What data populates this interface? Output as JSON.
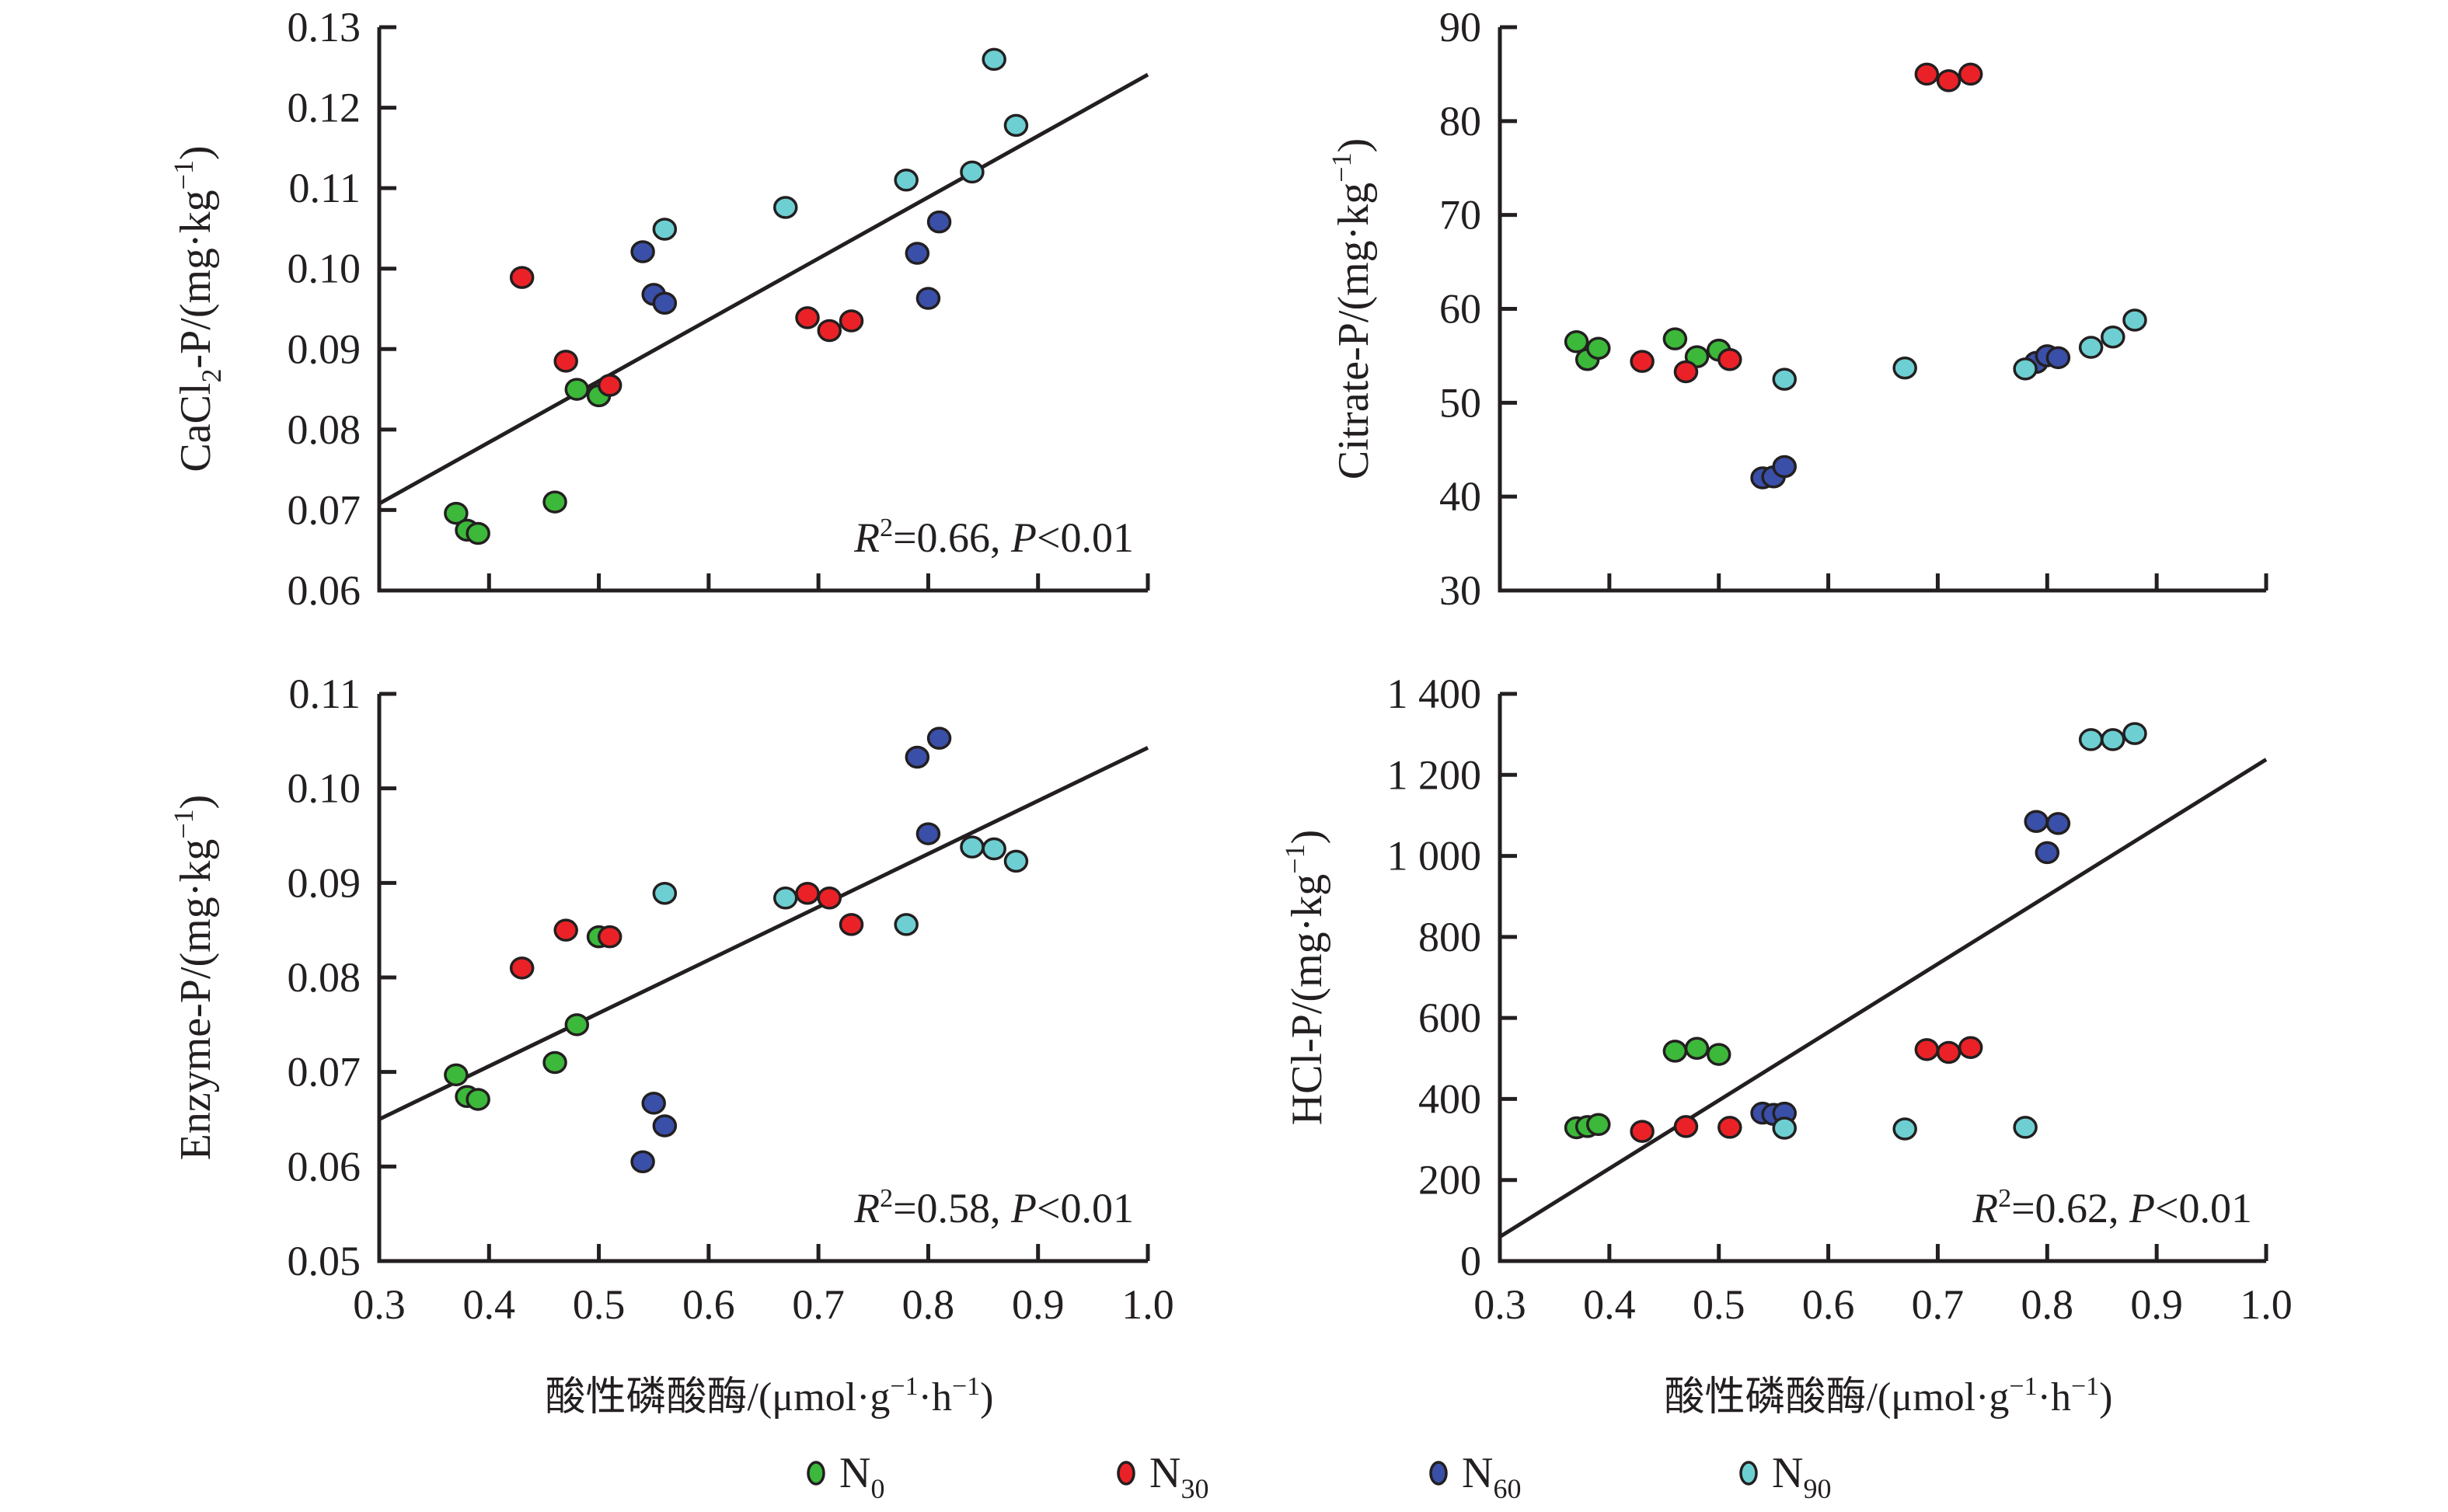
{
  "chart_data": [
    {
      "type": "scatter",
      "id": "cacl2",
      "title": "",
      "ylabel_main": "CaCl",
      "ylabel_sub": "2",
      "ylabel_rest": "-P/(mg·kg",
      "ylabel_sup": "−1",
      "ylabel_close": ")",
      "xlabel": "",
      "xlim": [
        0.3,
        1.0
      ],
      "ylim": [
        0.06,
        0.13
      ],
      "xticks": [
        0.3,
        0.4,
        0.5,
        0.6,
        0.7,
        0.8,
        0.9,
        1.0
      ],
      "yticks": [
        0.06,
        0.07,
        0.08,
        0.09,
        0.1,
        0.11,
        0.12,
        0.13
      ],
      "ytick_labels": [
        "0.06",
        "0.07",
        "0.08",
        "0.09",
        "0.10",
        "0.11",
        "0.12",
        "0.13"
      ],
      "show_xtick_labels": false,
      "grid": false,
      "annotation": {
        "r_label": "R",
        "r_sup": "2",
        "r_value": "=0.66, ",
        "p_label": "P",
        "p_value": "<0.01"
      },
      "regression": {
        "x": [
          0.3,
          1.0
        ],
        "y": [
          0.0708,
          0.1241
        ]
      },
      "series": [
        {
          "name": "N0",
          "x": [
            0.37,
            0.38,
            0.39,
            0.46,
            0.48,
            0.5
          ],
          "y": [
            0.0696,
            0.0675,
            0.0671,
            0.071,
            0.085,
            0.0842
          ]
        },
        {
          "name": "N30",
          "x": [
            0.43,
            0.47,
            0.51,
            0.69,
            0.71,
            0.73
          ],
          "y": [
            0.0989,
            0.0885,
            0.0855,
            0.0939,
            0.0923,
            0.0935
          ]
        },
        {
          "name": "N60",
          "x": [
            0.54,
            0.55,
            0.56,
            0.79,
            0.8,
            0.81
          ],
          "y": [
            0.1021,
            0.0968,
            0.0957,
            0.1019,
            0.0963,
            0.1058
          ]
        },
        {
          "name": "N90",
          "x": [
            0.56,
            0.67,
            0.78,
            0.84,
            0.86,
            0.88
          ],
          "y": [
            0.1049,
            0.1076,
            0.111,
            0.112,
            0.126,
            0.1178
          ]
        }
      ]
    },
    {
      "type": "scatter",
      "id": "citrate",
      "title": "",
      "ylabel_main": "Citrate-P/(mg·kg",
      "ylabel_sub": "",
      "ylabel_rest": "",
      "ylabel_sup": "−1",
      "ylabel_close": ")",
      "xlabel": "",
      "xlim": [
        0.3,
        1.0
      ],
      "ylim": [
        30,
        90
      ],
      "xticks": [
        0.3,
        0.4,
        0.5,
        0.6,
        0.7,
        0.8,
        0.9,
        1.0
      ],
      "yticks": [
        30,
        40,
        50,
        60,
        70,
        80,
        90
      ],
      "ytick_labels": [
        "30",
        "40",
        "50",
        "60",
        "70",
        "80",
        "90"
      ],
      "show_xtick_labels": false,
      "grid": false,
      "annotation": null,
      "regression": null,
      "series": [
        {
          "name": "N0",
          "x": [
            0.37,
            0.38,
            0.39,
            0.46,
            0.48,
            0.5
          ],
          "y": [
            56.5,
            54.6,
            55.8,
            56.8,
            54.9,
            55.6
          ]
        },
        {
          "name": "N30",
          "x": [
            0.43,
            0.47,
            0.51,
            0.69,
            0.71,
            0.73
          ],
          "y": [
            54.4,
            53.3,
            54.6,
            85.0,
            84.3,
            85.0
          ]
        },
        {
          "name": "N60",
          "x": [
            0.54,
            0.55,
            0.56,
            0.79,
            0.8,
            0.81
          ],
          "y": [
            42.0,
            42.1,
            43.2,
            54.3,
            55.0,
            54.8
          ]
        },
        {
          "name": "N90",
          "x": [
            0.56,
            0.67,
            0.78,
            0.84,
            0.86,
            0.88
          ],
          "y": [
            52.5,
            53.7,
            53.6,
            55.9,
            57.0,
            58.8
          ]
        }
      ]
    },
    {
      "type": "scatter",
      "id": "enzyme",
      "title": "",
      "ylabel_main": "Enzyme-P/(mg·kg",
      "ylabel_sub": "",
      "ylabel_rest": "",
      "ylabel_sup": "−1",
      "ylabel_close": ")",
      "xlabel": "酸性磷酸酶/(μmol·g⁻¹·h⁻¹)",
      "xlim": [
        0.3,
        1.0
      ],
      "ylim": [
        0.05,
        0.11
      ],
      "xticks": [
        0.3,
        0.4,
        0.5,
        0.6,
        0.7,
        0.8,
        0.9,
        1.0
      ],
      "xtick_labels": [
        "0.3",
        "0.4",
        "0.5",
        "0.6",
        "0.7",
        "0.8",
        "0.9",
        "1.0"
      ],
      "yticks": [
        0.05,
        0.06,
        0.07,
        0.08,
        0.09,
        0.1,
        0.11
      ],
      "ytick_labels": [
        "0.05",
        "0.06",
        "0.07",
        "0.08",
        "0.09",
        "0.10",
        "0.11"
      ],
      "show_xtick_labels": true,
      "grid": false,
      "annotation": {
        "r_label": "R",
        "r_sup": "2",
        "r_value": "=0.58, ",
        "p_label": "P",
        "p_value": "<0.01"
      },
      "regression": {
        "x": [
          0.3,
          1.0
        ],
        "y": [
          0.065,
          0.1043
        ]
      },
      "series": [
        {
          "name": "N0",
          "x": [
            0.37,
            0.38,
            0.39,
            0.46,
            0.48,
            0.5
          ],
          "y": [
            0.0697,
            0.0674,
            0.0671,
            0.071,
            0.075,
            0.0843
          ]
        },
        {
          "name": "N30",
          "x": [
            0.43,
            0.47,
            0.51,
            0.69,
            0.71,
            0.73
          ],
          "y": [
            0.081,
            0.085,
            0.0843,
            0.0889,
            0.0884,
            0.0856
          ]
        },
        {
          "name": "N60",
          "x": [
            0.54,
            0.55,
            0.56,
            0.79,
            0.8,
            0.81
          ],
          "y": [
            0.0605,
            0.0667,
            0.0643,
            0.1033,
            0.0952,
            0.1053
          ]
        },
        {
          "name": "N90",
          "x": [
            0.56,
            0.67,
            0.78,
            0.84,
            0.86,
            0.88
          ],
          "y": [
            0.0889,
            0.0884,
            0.0856,
            0.0938,
            0.0936,
            0.0923
          ]
        }
      ]
    },
    {
      "type": "scatter",
      "id": "hcl",
      "title": "",
      "ylabel_main": "HCl-P/(mg·kg",
      "ylabel_sub": "",
      "ylabel_rest": "",
      "ylabel_sup": "−1",
      "ylabel_close": ")",
      "xlabel": "酸性磷酸酶/(μmol·g⁻¹·h⁻¹)",
      "xlim": [
        0.3,
        1.0
      ],
      "ylim": [
        0,
        1400
      ],
      "xticks": [
        0.3,
        0.4,
        0.5,
        0.6,
        0.7,
        0.8,
        0.9,
        1.0
      ],
      "xtick_labels": [
        "0.3",
        "0.4",
        "0.5",
        "0.6",
        "0.7",
        "0.8",
        "0.9",
        "1.0"
      ],
      "yticks": [
        0,
        200,
        400,
        600,
        800,
        1000,
        1200,
        1400
      ],
      "ytick_labels": [
        "0",
        "200",
        "400",
        "600",
        "800",
        "1 000",
        "1 200",
        "1 400"
      ],
      "show_xtick_labels": true,
      "grid": false,
      "annotation": {
        "r_label": "R",
        "r_sup": "2",
        "r_value": "=0.62, ",
        "p_label": "P",
        "p_value": "<0.01"
      },
      "regression": {
        "x": [
          0.3,
          1.0
        ],
        "y": [
          60,
          1238
        ]
      },
      "series": [
        {
          "name": "N0",
          "x": [
            0.37,
            0.38,
            0.39,
            0.46,
            0.48,
            0.5
          ],
          "y": [
            329,
            332,
            337,
            518,
            525,
            510
          ]
        },
        {
          "name": "N30",
          "x": [
            0.43,
            0.47,
            0.51,
            0.69,
            0.71,
            0.73
          ],
          "y": [
            320,
            332,
            330,
            522,
            515,
            527
          ]
        },
        {
          "name": "N60",
          "x": [
            0.54,
            0.55,
            0.56,
            0.79,
            0.8,
            0.81
          ],
          "y": [
            365,
            362,
            365,
            1085,
            1008,
            1080
          ]
        },
        {
          "name": "N90",
          "x": [
            0.56,
            0.67,
            0.78,
            0.84,
            0.86,
            0.88
          ],
          "y": [
            328,
            326,
            330,
            1287,
            1287,
            1302
          ]
        }
      ]
    }
  ],
  "xaxis_title": {
    "cn": "酸性磷酸酶/(μmol",
    "dot1": "·",
    "g": "g",
    "sup1": "−1",
    "dot2": "·",
    "h": "h",
    "sup2": "−1",
    "close": ")"
  },
  "legend": {
    "placement": "bottom-center",
    "items": [
      {
        "series": "N0",
        "base": "N",
        "sub": "0",
        "color": "#3cb83a"
      },
      {
        "series": "N30",
        "base": "N",
        "sub": "30",
        "color": "#ea2227"
      },
      {
        "series": "N60",
        "base": "N",
        "sub": "60",
        "color": "#3a4fa8"
      },
      {
        "series": "N90",
        "base": "N",
        "sub": "90",
        "color": "#6dcfd2"
      }
    ]
  },
  "colors": {
    "N0": "#3cb83a",
    "N30": "#ea2227",
    "N60": "#3a4fa8",
    "N90": "#6dcfd2",
    "axis": "#231f20"
  }
}
